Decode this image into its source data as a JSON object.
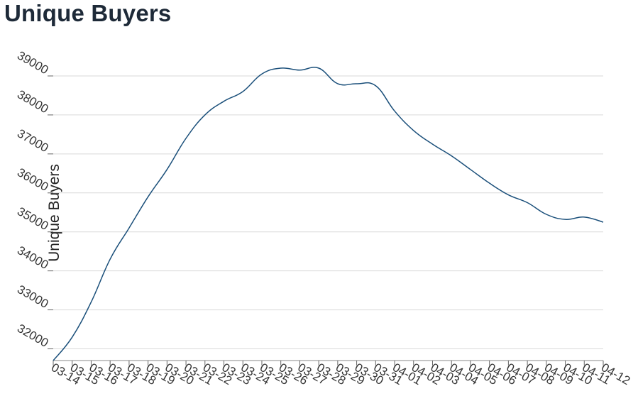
{
  "title": "Unique Buyers",
  "chart_data": {
    "type": "line",
    "title": "Unique Buyers",
    "xlabel": "",
    "ylabel": "Unique Buyers",
    "categories": [
      "03-14",
      "03-15",
      "03-16",
      "03-17",
      "03-18",
      "03-19",
      "03-20",
      "03-21",
      "03-22",
      "03-23",
      "03-24",
      "03-25",
      "03-26",
      "03-27",
      "03-28",
      "03-29",
      "03-30",
      "03-31",
      "04-01",
      "04-02",
      "04-03",
      "04-04",
      "04-05",
      "04-06",
      "04-07",
      "04-08",
      "04-09",
      "04-10",
      "04-11",
      "04-12"
    ],
    "series": [
      {
        "values": [
          31700,
          32300,
          33200,
          34300,
          35100,
          35900,
          36600,
          37400,
          38000,
          38350,
          38600,
          39050,
          39200,
          39150,
          39200,
          38800,
          38800,
          38750,
          38100,
          37600,
          37250,
          36950,
          36600,
          36250,
          35950,
          35750,
          35450,
          35320,
          35380,
          35250
        ]
      }
    ],
    "yticks": [
      32000,
      33000,
      34000,
      35000,
      36000,
      37000,
      38000,
      39000
    ],
    "ylim": [
      31700,
      39200
    ],
    "grid": true,
    "line_color": "#1a4f7a",
    "grid_color": "#d9d9d9"
  }
}
